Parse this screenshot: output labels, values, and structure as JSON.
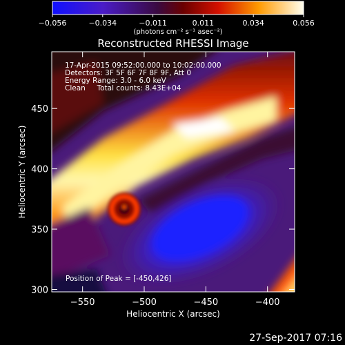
{
  "chart_data": {
    "type": "heatmap",
    "title": "Reconstructed RHESSI Image",
    "xlabel": "Heliocentric X (arcsec)",
    "ylabel": "Heliocentric Y (arcsec)",
    "xlim": [
      -575,
      -378
    ],
    "ylim": [
      298,
      497
    ],
    "xticks": [
      -550,
      -500,
      -450,
      -400
    ],
    "yticks": [
      300,
      350,
      400,
      450
    ],
    "colorbar": {
      "ticks": [
        "-0.056",
        "-0.034",
        "-0.011",
        "0.011",
        "0.034",
        "0.056"
      ],
      "units": "(photons cm⁻² s⁻¹ asec⁻²)",
      "range": [
        -0.056,
        0.056
      ],
      "colormap": "blue-purple-red-yellow-white"
    },
    "annotations": [
      "17-Apr-2015 09:52:00.000 to 10:02:00.000",
      "Detectors: 3F 5F 6F 7F 8F 9F, Att 0",
      "Energy Range: 3.0 - 6.0 keV",
      "Clean     Total counts: 8.43E+04",
      "Position of Peak = [-450,426]"
    ],
    "footer_timestamp": "27-Sep-2017 07:16",
    "peak": {
      "x": -450,
      "y": 426
    }
  }
}
